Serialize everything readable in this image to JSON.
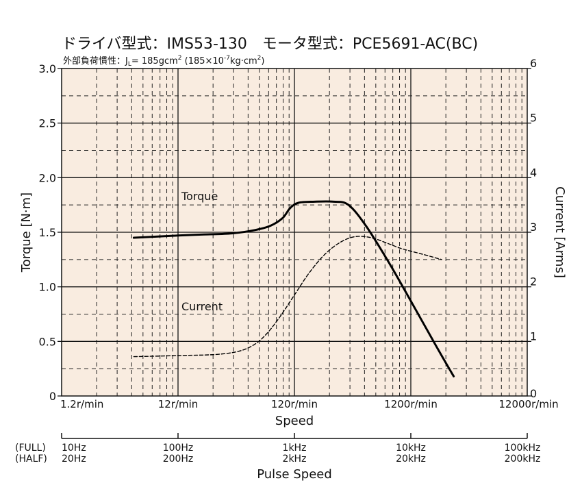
{
  "chart_data": {
    "type": "line",
    "title": "ドライバ型式：IMS53-130　モータ型式：PCE5691-AC(BC)",
    "subtitle": "外部負荷慣性：JL= 185gcm2 (185×10-7kg·cm2)",
    "subtitle_parts": {
      "prefix": "外部負荷慣性：J",
      "j_sub": "L",
      "mid1": "= 185gcm",
      "sup1": "2",
      "mid2": " (185×10",
      "sup2": "-7",
      "mid3": "kg·cm",
      "sup3": "2",
      "suffix": ")"
    },
    "xlabel": "Speed",
    "x2label": "Pulse Speed",
    "ylabel_left": "Torque  [N·m]",
    "ylabel_right": "Current  [Arms]",
    "x_scale": "log",
    "xlim": [
      1.2,
      12000
    ],
    "ylim_left": [
      0,
      3.0
    ],
    "ylim_right": [
      0,
      6
    ],
    "grid": true,
    "background_color": "#f9ece0",
    "x_tick_labels": [
      "1.2r/min",
      "12r/min",
      "120r/min",
      "1200r/min",
      "12000r/min"
    ],
    "y_left_ticks": [
      "0",
      "0.5",
      "1.0",
      "1.5",
      "2.0",
      "2.5",
      "3.0"
    ],
    "y_right_ticks": [
      "0",
      "1",
      "2",
      "3",
      "4",
      "5",
      "6"
    ],
    "pulse_axis": {
      "row_labels": [
        "(FULL)",
        "(HALF)"
      ],
      "full": [
        "10Hz",
        "100Hz",
        "1kHz",
        "10kHz",
        "100kHz"
      ],
      "half": [
        "20Hz",
        "200Hz",
        "2kHz",
        "20kHz",
        "200kHz"
      ]
    },
    "series": [
      {
        "name": "Torque",
        "axis": "left",
        "style": "solid",
        "x": [
          5,
          12,
          20,
          35,
          55,
          75,
          95,
          110,
          130,
          180,
          260,
          350,
          500,
          800,
          1200,
          2000,
          2800
        ],
        "y": [
          1.45,
          1.47,
          1.48,
          1.49,
          1.52,
          1.56,
          1.63,
          1.72,
          1.77,
          1.78,
          1.78,
          1.75,
          1.55,
          1.2,
          0.87,
          0.45,
          0.18
        ]
      },
      {
        "name": "Current",
        "axis": "right",
        "style": "dashed",
        "x": [
          5,
          12,
          25,
          40,
          55,
          70,
          90,
          120,
          160,
          220,
          300,
          400,
          550,
          750,
          1000,
          1500,
          2200
        ],
        "y": [
          0.72,
          0.74,
          0.76,
          0.82,
          0.95,
          1.15,
          1.45,
          1.85,
          2.25,
          2.6,
          2.82,
          2.92,
          2.9,
          2.8,
          2.7,
          2.6,
          2.5
        ]
      }
    ]
  }
}
